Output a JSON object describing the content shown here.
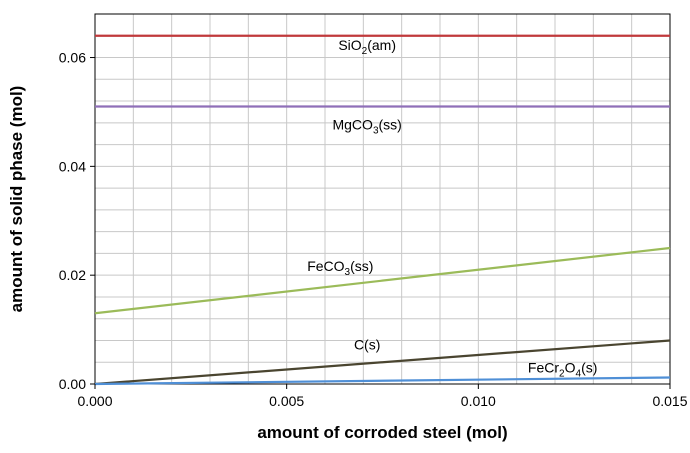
{
  "chart_data": {
    "type": "line",
    "title": "",
    "xlabel": "amount of corroded steel (mol)",
    "ylabel": "amount of solid phase (mol)",
    "xlim": [
      0,
      0.015
    ],
    "ylim": [
      0,
      0.068
    ],
    "x_ticks": [
      "0.000",
      "0.005",
      "0.010",
      "0.015"
    ],
    "y_ticks": [
      "0.00",
      "0.02",
      "0.04",
      "0.06"
    ],
    "x_minor_step": 0.001,
    "y_minor_step": 0.004,
    "grid": true,
    "legend": "none",
    "series": [
      {
        "id": "sio2",
        "label_base": "SiO",
        "label_sub": "2",
        "label_tail": "(am)",
        "color": "#c0393b",
        "x": [
          0,
          0.015
        ],
        "y": [
          0.064,
          0.064
        ],
        "label_at": [
          0.0071,
          0.0614
        ]
      },
      {
        "id": "mgco3",
        "label_base": "MgCO",
        "label_sub": "3",
        "label_tail": "(ss)",
        "color": "#8f6fb8",
        "x": [
          0,
          0.015
        ],
        "y": [
          0.051,
          0.051
        ],
        "label_at": [
          0.0071,
          0.0468
        ]
      },
      {
        "id": "feco3",
        "label_base": "FeCO",
        "label_sub": "3",
        "label_tail": "(ss)",
        "color": "#9bbb59",
        "x": [
          0,
          0.015
        ],
        "y": [
          0.013,
          0.025
        ],
        "label_at": [
          0.0064,
          0.0208
        ]
      },
      {
        "id": "c",
        "label_base": "C(s)",
        "label_sub": "",
        "label_tail": "",
        "color": "#4a4530",
        "x": [
          0,
          0.015
        ],
        "y": [
          0.0,
          0.008
        ],
        "label_at": [
          0.0071,
          0.0063
        ]
      },
      {
        "id": "fecr2o4",
        "label_base": "FeCr",
        "label_sub": "2",
        "label_tail": "O",
        "label_sub2": "4",
        "label_tail2": "(s)",
        "color": "#4f8fd6",
        "x": [
          0,
          0.015
        ],
        "y": [
          0.0,
          0.0012
        ],
        "label_at": [
          0.0122,
          0.0021
        ]
      }
    ]
  }
}
